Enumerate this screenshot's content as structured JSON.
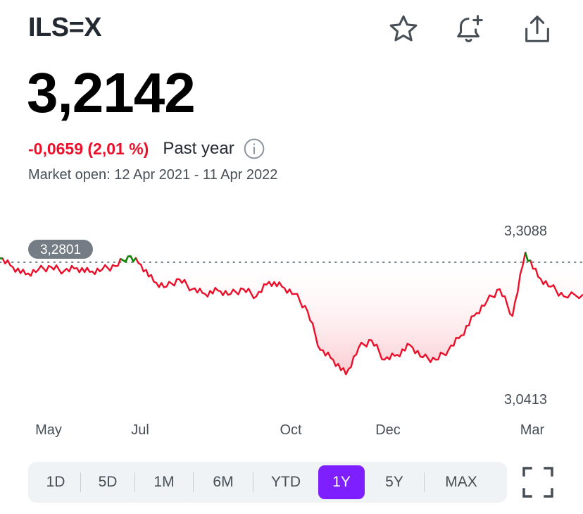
{
  "header": {
    "symbol": "ILS=X",
    "icons": [
      "star-icon",
      "bell-plus-icon",
      "share-icon"
    ]
  },
  "quote": {
    "price": "3,2142",
    "change": "-0,0659 (2,01 %)",
    "period": "Past year",
    "market_status": "Market open: 12 Apr 2021 - 11 Apr 2022"
  },
  "colors": {
    "negative": "#eb0f29",
    "positive": "#008a00",
    "accent": "#7e1fff"
  },
  "chart_data": {
    "type": "line",
    "reference_value": 3.2801,
    "reference_label": "3,2801",
    "high_label": "3,3088",
    "low_label": "3,0413",
    "x_tick_labels": [
      "May",
      "Jul",
      "Oct",
      "Dec",
      "Mar"
    ],
    "ylim": [
      3.0413,
      3.3088
    ],
    "series": [
      {
        "x": [
          "2021-04-12",
          "2021-04-20",
          "2021-04-28",
          "2021-05-06",
          "2021-05-14",
          "2021-05-22",
          "2021-05-30",
          "2021-06-07",
          "2021-06-15",
          "2021-06-23",
          "2021-07-01",
          "2021-07-09",
          "2021-07-17",
          "2021-07-25",
          "2021-08-02",
          "2021-08-10",
          "2021-08-18",
          "2021-08-26",
          "2021-09-03",
          "2021-09-11",
          "2021-09-19",
          "2021-09-27",
          "2021-10-05",
          "2021-10-13",
          "2021-10-21",
          "2021-10-29",
          "2021-11-06",
          "2021-11-14",
          "2021-11-22",
          "2021-11-30",
          "2021-12-08",
          "2021-12-16",
          "2021-12-24",
          "2022-01-01",
          "2022-01-09",
          "2022-01-17",
          "2022-01-25",
          "2022-02-02",
          "2022-02-10",
          "2022-02-18",
          "2022-02-26",
          "2022-03-06",
          "2022-03-14",
          "2022-03-22",
          "2022-03-30",
          "2022-04-11"
        ],
        "values": [
          3.288,
          3.27,
          3.255,
          3.265,
          3.27,
          3.262,
          3.268,
          3.26,
          3.266,
          3.272,
          3.292,
          3.275,
          3.24,
          3.23,
          3.245,
          3.225,
          3.215,
          3.222,
          3.215,
          3.225,
          3.21,
          3.24,
          3.23,
          3.215,
          3.18,
          3.1,
          3.08,
          3.05,
          3.105,
          3.12,
          3.08,
          3.09,
          3.11,
          3.085,
          3.08,
          3.1,
          3.13,
          3.17,
          3.2,
          3.225,
          3.17,
          3.3,
          3.25,
          3.23,
          3.21,
          3.214
        ]
      }
    ]
  },
  "ranges": {
    "items": [
      "1D",
      "5D",
      "1M",
      "6M",
      "YTD",
      "1Y",
      "5Y",
      "MAX"
    ],
    "selected": "1Y"
  }
}
